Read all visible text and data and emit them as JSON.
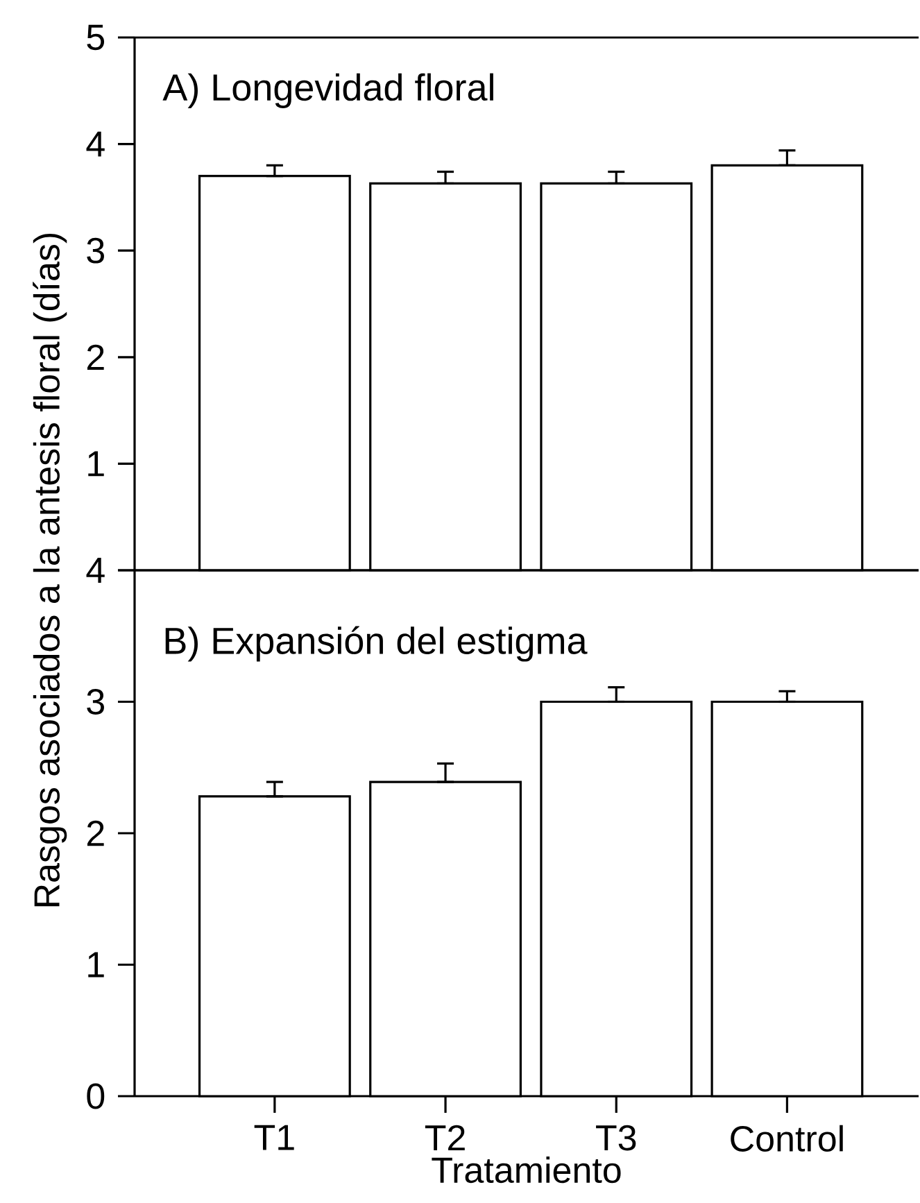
{
  "chart_data": [
    {
      "type": "bar",
      "title": "A) Longevidad floral",
      "ylabel": "Rasgos asociados a la antesis floral (días)",
      "categories": [
        null,
        null,
        null,
        null
      ],
      "values": [
        3.7,
        3.63,
        3.63,
        3.8
      ],
      "errors": [
        [
          3.7,
          3.8
        ],
        [
          3.63,
          3.74
        ],
        [
          3.63,
          3.74
        ],
        [
          3.8,
          3.94
        ]
      ],
      "color": "#ffffff",
      "ylim": [
        0,
        5
      ],
      "yticks": [
        {
          "value": 0,
          "label": null
        },
        1,
        2,
        3,
        4,
        5
      ],
      "tick_labels": "y"
    },
    {
      "type": "bar",
      "title": "B) Expansión del estigma",
      "xlabel": "Tratamiento",
      "categories": [
        "T1",
        "T2",
        "T3",
        "Control"
      ],
      "values": [
        2.28,
        2.39,
        3.0,
        3.0
      ],
      "errors": [
        [
          2.28,
          2.39
        ],
        [
          2.39,
          2.53
        ],
        [
          3.0,
          3.11
        ],
        [
          3.0,
          3.08
        ]
      ],
      "color": "#ffffff",
      "ylim": [
        0,
        4
      ],
      "yticks": [
        0,
        1,
        2,
        3,
        4
      ]
    }
  ]
}
